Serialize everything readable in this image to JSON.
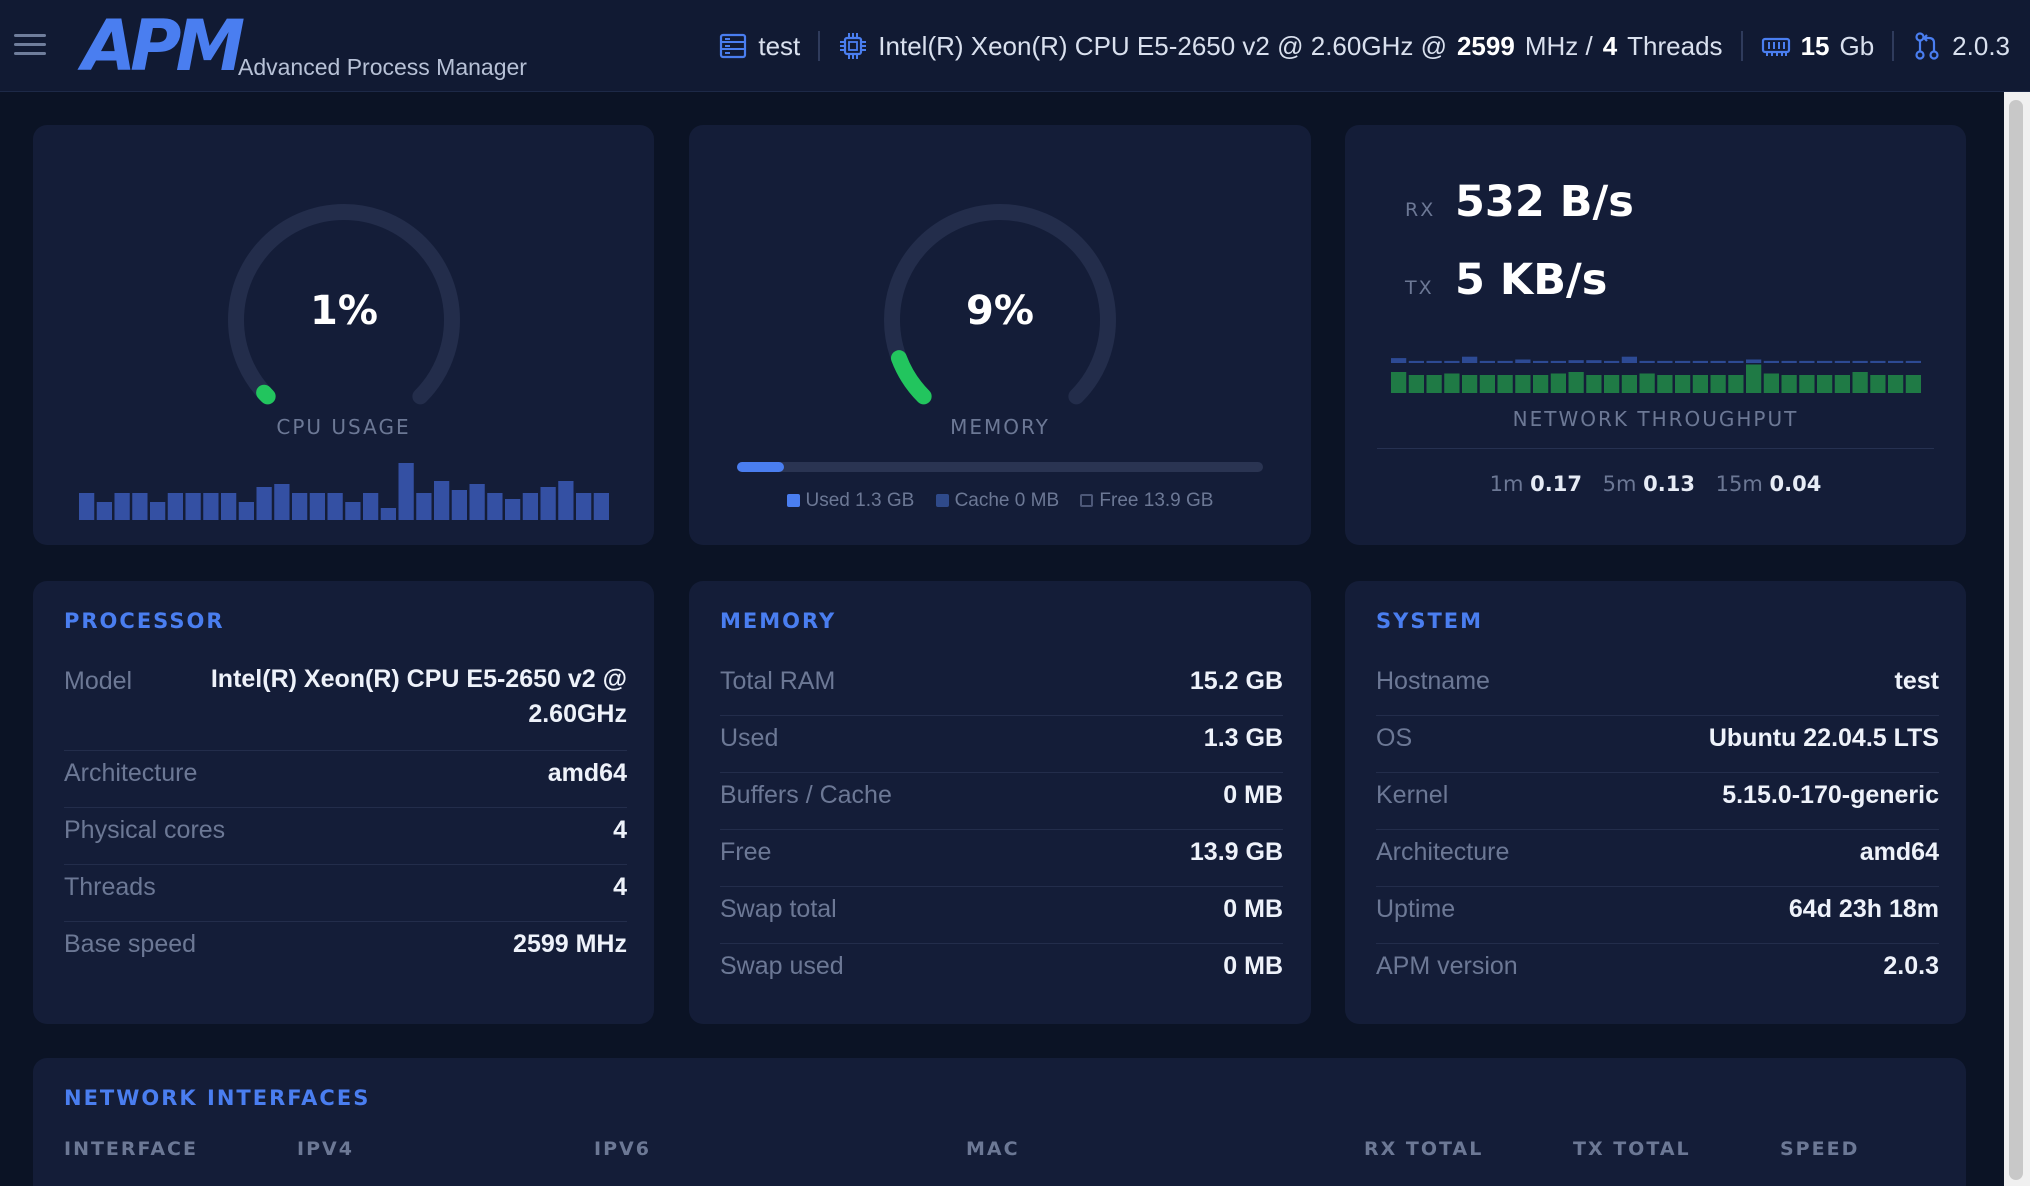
{
  "header": {
    "logo": "APM",
    "subtitle": "Advanced Process Manager",
    "hostname": "test",
    "cpu_model": "Intel(R) Xeon(R) CPU E5-2650 v2 @ 2.60GHz @",
    "cpu_mhz": "2599",
    "mhz_unit": "MHz /",
    "threads": "4",
    "threads_label": "Threads",
    "ram": "15",
    "ram_unit": "Gb",
    "version": "2.0.3"
  },
  "cpu_gauge": {
    "value": "1%",
    "percent": 1,
    "label": "CPU USAGE",
    "history": [
      0.45,
      0.3,
      0.45,
      0.45,
      0.3,
      0.45,
      0.45,
      0.45,
      0.45,
      0.3,
      0.55,
      0.6,
      0.45,
      0.45,
      0.45,
      0.3,
      0.45,
      0.2,
      0.95,
      0.45,
      0.65,
      0.5,
      0.6,
      0.45,
      0.35,
      0.45,
      0.55,
      0.65,
      0.45,
      0.45
    ]
  },
  "memory_gauge": {
    "value": "9%",
    "percent": 9,
    "label": "MEMORY",
    "bar_percent": 9,
    "legend": {
      "used": "Used 1.3 GB",
      "cache": "Cache 0 MB",
      "free": "Free 13.9 GB"
    }
  },
  "network": {
    "rx_label": "RX",
    "rx": "532 B/s",
    "tx_label": "TX",
    "tx": "5 KB/s",
    "title": "NETWORK THROUGHPUT",
    "rx_history": [
      0.35,
      0.15,
      0.15,
      0.15,
      0.45,
      0.15,
      0.15,
      0.25,
      0.15,
      0.15,
      0.2,
      0.2,
      0.15,
      0.45,
      0.15,
      0.15,
      0.15,
      0.15,
      0.15,
      0.15,
      0.25,
      0.15,
      0.15,
      0.15,
      0.15,
      0.15,
      0.15,
      0.15,
      0.15,
      0.15
    ],
    "tx_history": [
      0.7,
      0.6,
      0.6,
      0.65,
      0.6,
      0.6,
      0.6,
      0.6,
      0.6,
      0.65,
      0.7,
      0.6,
      0.6,
      0.6,
      0.65,
      0.6,
      0.6,
      0.6,
      0.6,
      0.6,
      0.95,
      0.65,
      0.6,
      0.6,
      0.6,
      0.6,
      0.7,
      0.6,
      0.6,
      0.6
    ],
    "load": [
      {
        "label": "1m",
        "value": "0.17"
      },
      {
        "label": "5m",
        "value": "0.13"
      },
      {
        "label": "15m",
        "value": "0.04"
      }
    ]
  },
  "processor": {
    "title": "PROCESSOR",
    "rows": [
      {
        "key": "Model",
        "value": "Intel(R) Xeon(R) CPU E5-2650 v2 @ 2.60GHz"
      },
      {
        "key": "Architecture",
        "value": "amd64"
      },
      {
        "key": "Physical cores",
        "value": "4"
      },
      {
        "key": "Threads",
        "value": "4"
      },
      {
        "key": "Base speed",
        "value": "2599 MHz"
      }
    ]
  },
  "memory": {
    "title": "MEMORY",
    "rows": [
      {
        "key": "Total RAM",
        "value": "15.2 GB"
      },
      {
        "key": "Used",
        "value": "1.3 GB"
      },
      {
        "key": "Buffers / Cache",
        "value": "0 MB"
      },
      {
        "key": "Free",
        "value": "13.9 GB"
      },
      {
        "key": "Swap total",
        "value": "0 MB"
      },
      {
        "key": "Swap used",
        "value": "0 MB"
      }
    ]
  },
  "system": {
    "title": "SYSTEM",
    "rows": [
      {
        "key": "Hostname",
        "value": "test"
      },
      {
        "key": "OS",
        "value": "Ubuntu 22.04.5 LTS"
      },
      {
        "key": "Kernel",
        "value": "5.15.0-170-generic"
      },
      {
        "key": "Architecture",
        "value": "amd64"
      },
      {
        "key": "Uptime",
        "value": "64d 23h 18m"
      },
      {
        "key": "APM version",
        "value": "2.0.3"
      }
    ]
  },
  "interfaces": {
    "title": "NETWORK INTERFACES",
    "columns": [
      "INTERFACE",
      "IPV4",
      "IPV6",
      "MAC",
      "RX TOTAL",
      "TX TOTAL",
      "SPEED"
    ]
  },
  "colors": {
    "accent": "#4a7ef0",
    "gauge_green": "#22c55e",
    "card": "#141d38",
    "bg": "#0b1325"
  },
  "icons": {
    "host": "server-icon",
    "cpu": "chip-icon",
    "ram": "memory-icon",
    "version": "git-branch-icon"
  }
}
